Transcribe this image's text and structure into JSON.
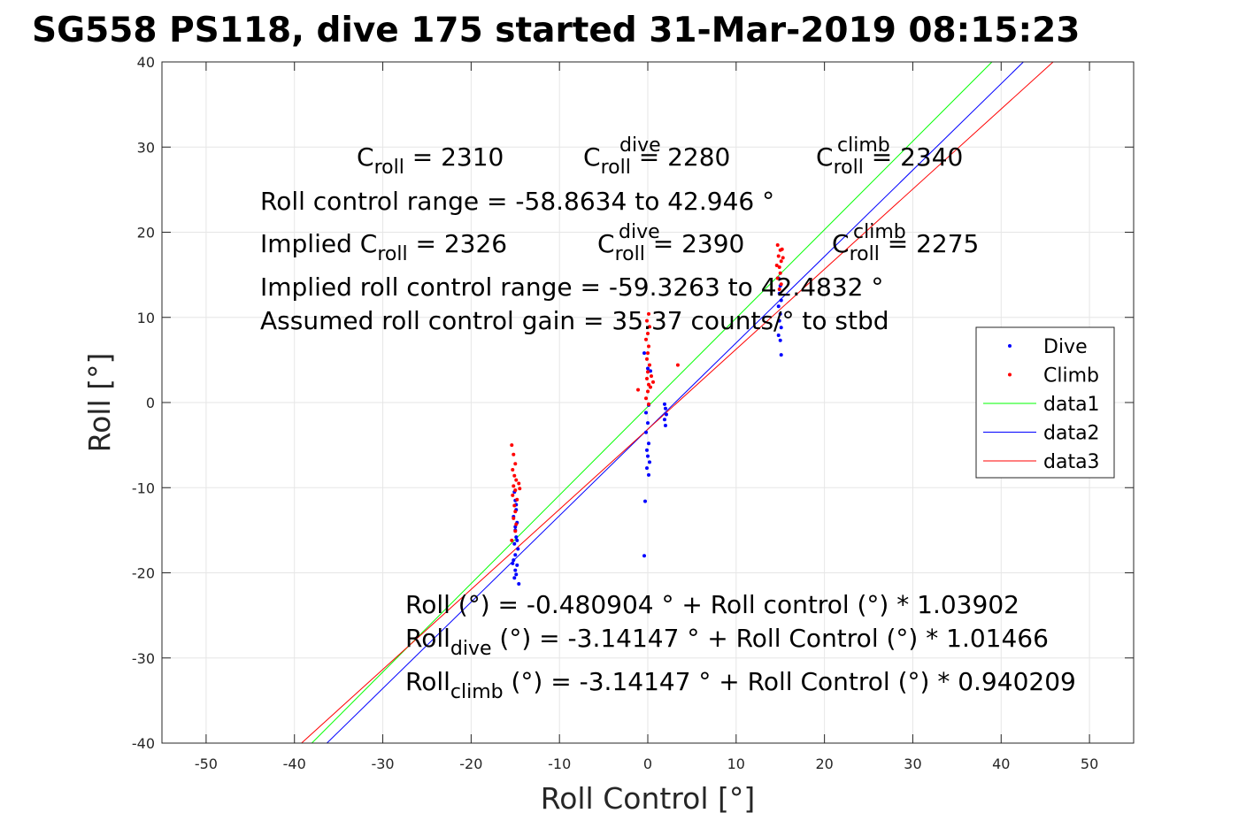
{
  "chart_data": {
    "type": "scatter",
    "title": "SG558 PS118, dive 175 started 31-Mar-2019 08:15:23",
    "xlabel": "Roll Control [°]",
    "ylabel": "Roll [°]",
    "xlim": [
      -55,
      55
    ],
    "ylim": [
      -40,
      40
    ],
    "grid": true,
    "legend_placement": "right",
    "x_ticks": [
      -50,
      -40,
      -30,
      -20,
      -10,
      0,
      10,
      20,
      30,
      40,
      50
    ],
    "y_ticks": [
      -40,
      -30,
      -20,
      -10,
      0,
      10,
      20,
      30,
      40
    ],
    "x_tick_labels": [
      "-50",
      "-40",
      "-30",
      "-20",
      "-10",
      "0",
      "10",
      "20",
      "30",
      "40",
      "50"
    ],
    "y_tick_labels": [
      "-40",
      "-30",
      "-20",
      "-10",
      "0",
      "10",
      "20",
      "30",
      "40"
    ],
    "series": [
      {
        "name": "Dive",
        "kind": "points",
        "color": "#0000ff",
        "points": [
          [
            -15.1,
            -10.5
          ],
          [
            -15.0,
            -11.5
          ],
          [
            -14.9,
            -12.6
          ],
          [
            -15.2,
            -13.4
          ],
          [
            -14.8,
            -14.1
          ],
          [
            -15.0,
            -15.0
          ],
          [
            -14.9,
            -15.8
          ],
          [
            -15.1,
            -16.6
          ],
          [
            -14.7,
            -17.2
          ],
          [
            -15.0,
            -17.9
          ],
          [
            -15.2,
            -18.5
          ],
          [
            -14.8,
            -19.1
          ],
          [
            -15.0,
            -19.7
          ],
          [
            -14.9,
            -20.2
          ],
          [
            -15.1,
            -20.6
          ],
          [
            -14.6,
            -21.3
          ],
          [
            -14.8,
            -16.2
          ],
          [
            -15.3,
            -18.9
          ],
          [
            -14.9,
            -12.0
          ],
          [
            -15.0,
            -14.6
          ],
          [
            -0.2,
            -3.5
          ],
          [
            0.1,
            -4.8
          ],
          [
            -0.1,
            -5.6
          ],
          [
            0.0,
            -6.3
          ],
          [
            0.2,
            -7.0
          ],
          [
            -0.1,
            -7.7
          ],
          [
            0.1,
            -8.5
          ],
          [
            -0.3,
            -11.6
          ],
          [
            -0.4,
            -18.0
          ],
          [
            0.0,
            -2.4
          ],
          [
            -0.2,
            -1.2
          ],
          [
            0.1,
            -0.3
          ],
          [
            -0.4,
            5.8
          ],
          [
            0.0,
            4.0
          ],
          [
            0.3,
            3.7
          ],
          [
            1.9,
            -0.2
          ],
          [
            2.0,
            -0.7
          ],
          [
            2.1,
            -1.4
          ],
          [
            1.9,
            -2.0
          ],
          [
            2.0,
            -2.7
          ],
          [
            14.8,
            14.6
          ],
          [
            15.0,
            13.7
          ],
          [
            14.9,
            12.8
          ],
          [
            15.1,
            12.0
          ],
          [
            14.8,
            11.3
          ],
          [
            15.0,
            10.4
          ],
          [
            14.9,
            9.6
          ],
          [
            15.1,
            8.8
          ],
          [
            14.8,
            7.9
          ],
          [
            15.0,
            7.3
          ],
          [
            15.1,
            5.6
          ]
        ]
      },
      {
        "name": "Climb",
        "kind": "points",
        "color": "#ff0000",
        "points": [
          [
            -15.4,
            -5.0
          ],
          [
            -15.2,
            -6.1
          ],
          [
            -15.0,
            -7.2
          ],
          [
            -15.3,
            -7.9
          ],
          [
            -15.1,
            -8.6
          ],
          [
            -14.9,
            -9.1
          ],
          [
            -15.2,
            -9.8
          ],
          [
            -15.0,
            -10.3
          ],
          [
            -15.3,
            -10.9
          ],
          [
            -14.8,
            -11.4
          ],
          [
            -15.1,
            -12.1
          ],
          [
            -15.0,
            -12.8
          ],
          [
            -15.2,
            -13.6
          ],
          [
            -14.9,
            -14.3
          ],
          [
            -15.0,
            -15.1
          ],
          [
            -14.6,
            -9.5
          ],
          [
            -14.5,
            -10.1
          ],
          [
            -15.4,
            -16.2
          ],
          [
            0.1,
            10.4
          ],
          [
            -0.1,
            9.6
          ],
          [
            0.2,
            8.9
          ],
          [
            0.0,
            8.1
          ],
          [
            -0.2,
            7.4
          ],
          [
            0.1,
            6.6
          ],
          [
            0.0,
            5.8
          ],
          [
            -0.1,
            5.1
          ],
          [
            0.2,
            4.4
          ],
          [
            0.0,
            3.6
          ],
          [
            -0.1,
            2.8
          ],
          [
            0.1,
            2.1
          ],
          [
            0.0,
            1.3
          ],
          [
            -0.2,
            0.5
          ],
          [
            0.1,
            -0.2
          ],
          [
            0.3,
            1.8
          ],
          [
            0.4,
            3.1
          ],
          [
            0.6,
            2.4
          ],
          [
            3.4,
            4.4
          ],
          [
            -1.1,
            1.5
          ],
          [
            14.7,
            18.5
          ],
          [
            15.0,
            17.9
          ],
          [
            14.8,
            17.2
          ],
          [
            15.1,
            16.6
          ],
          [
            14.9,
            15.9
          ],
          [
            15.0,
            15.2
          ],
          [
            14.7,
            14.6
          ],
          [
            15.1,
            13.9
          ],
          [
            14.9,
            13.3
          ],
          [
            15.2,
            18.0
          ],
          [
            14.6,
            16.1
          ],
          [
            15.3,
            17.0
          ]
        ]
      },
      {
        "name": "data1",
        "kind": "line",
        "color": "#00ff00",
        "intercept": -0.480904,
        "slope": 1.03902
      },
      {
        "name": "data2",
        "kind": "line",
        "color": "#0000ff",
        "intercept": -3.14147,
        "slope": 1.01466
      },
      {
        "name": "data3",
        "kind": "line",
        "color": "#ff0000",
        "intercept": -3.14147,
        "slope": 0.940209
      }
    ],
    "annotations": {
      "c_roll_main": "C",
      "c_roll_sub": "roll",
      "c_roll_val": " = 2310",
      "c_dive_main": "C",
      "c_dive_sub": "roll",
      "c_dive_sup": "dive",
      "c_dive_val": " = 2280",
      "c_climb_main": "C",
      "c_climb_sub": "roll",
      "c_climb_sup": "climb",
      "c_climb_val": " = 2340",
      "range_line": "Roll control range = -58.8634 to 42.946 °",
      "implied_main": "Implied C",
      "implied_sub": "roll",
      "implied_val": " = 2326",
      "implied_dive_main": "C",
      "implied_dive_sub": "roll",
      "implied_dive_sup": "dive",
      "implied_dive_val": " = 2390",
      "implied_climb_main": "C",
      "implied_climb_sub": "roll",
      "implied_climb_sup": "climb",
      "implied_climb_val": " = 2275",
      "implied_range_line": "Implied roll control range = -59.3263 to 42.4832 °",
      "gain_line": "Assumed roll control gain = 35.37 counts/° to stbd",
      "fit_all": "Roll (°) = -0.480904 ° + Roll control (°) * 1.03902",
      "fit_dive_main": "Roll",
      "fit_dive_sub": "dive",
      "fit_dive_rest": " (°) = -3.14147 ° + Roll Control (°) * 1.01466",
      "fit_climb_main": "Roll",
      "fit_climb_sub": "climb",
      "fit_climb_rest": " (°) = -3.14147 ° + Roll Control (°) * 0.940209"
    }
  }
}
